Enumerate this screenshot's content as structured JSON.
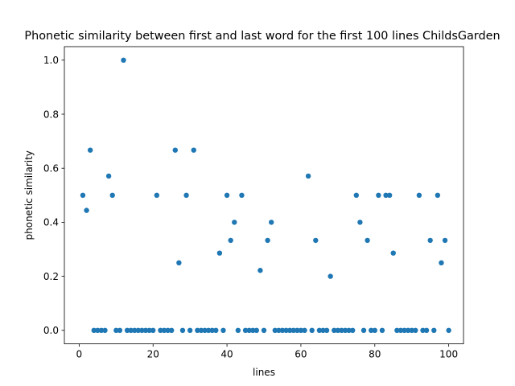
{
  "chart_data": {
    "type": "scatter",
    "title": "Phonetic similarity between first and last word for the first 100 lines ChildsGarden",
    "xlabel": "lines",
    "ylabel": "phonetic similarity",
    "xlim": [
      -4,
      104
    ],
    "ylim": [
      -0.05,
      1.05
    ],
    "xticks": [
      0,
      20,
      40,
      60,
      80,
      100
    ],
    "yticks": [
      0.0,
      0.2,
      0.4,
      0.6,
      0.8,
      1.0
    ],
    "xtick_labels": [
      "0",
      "20",
      "40",
      "60",
      "80",
      "100"
    ],
    "ytick_labels": [
      "0.0",
      "0.2",
      "0.4",
      "0.6",
      "0.8",
      "1.0"
    ],
    "marker_color": "#1f77b4",
    "grid": false,
    "legend": "none",
    "series": [
      {
        "x": [
          1,
          2,
          3,
          4,
          5,
          6,
          7,
          8,
          9,
          10,
          11,
          12,
          13,
          14,
          15,
          16,
          17,
          18,
          19,
          20,
          21,
          22,
          23,
          24,
          25,
          26,
          27,
          28,
          29,
          30,
          31,
          32,
          33,
          34,
          35,
          36,
          37,
          38,
          39,
          40,
          41,
          42,
          43,
          44,
          45,
          46,
          47,
          48,
          49,
          50,
          51,
          52,
          53,
          54,
          55,
          56,
          57,
          58,
          59,
          60,
          61,
          62,
          63,
          64,
          65,
          66,
          67,
          68,
          69,
          70,
          71,
          72,
          73,
          74,
          75,
          76,
          77,
          78,
          79,
          80,
          81,
          82,
          83,
          84,
          85,
          86,
          87,
          88,
          89,
          90,
          91,
          92,
          93,
          94,
          95,
          96,
          97,
          98,
          99,
          100
        ],
        "y": [
          0.5,
          0.444,
          0.667,
          0,
          0,
          0,
          0,
          0.571,
          0.5,
          0,
          0,
          1.0,
          0,
          0,
          0,
          0,
          0,
          0,
          0,
          0,
          0.5,
          0,
          0,
          0,
          0,
          0.667,
          0.25,
          0,
          0.5,
          0,
          0.667,
          0,
          0,
          0,
          0,
          0,
          0,
          0.286,
          0,
          0.5,
          0.333,
          0.4,
          0,
          0.5,
          0,
          0,
          0,
          0,
          0.222,
          0,
          0.333,
          0.4,
          0,
          0,
          0,
          0,
          0,
          0,
          0,
          0,
          0,
          0.571,
          0,
          0.333,
          0,
          0,
          0,
          0.2,
          0,
          0,
          0,
          0,
          0,
          0,
          0.5,
          0.4,
          0,
          0.333,
          0,
          0,
          0.5,
          0,
          0.5,
          0.5,
          0.286,
          0,
          0,
          0,
          0,
          0,
          0,
          0.5,
          0,
          0,
          0.333,
          0,
          0.5,
          0.25,
          0.333,
          0
        ]
      }
    ]
  }
}
